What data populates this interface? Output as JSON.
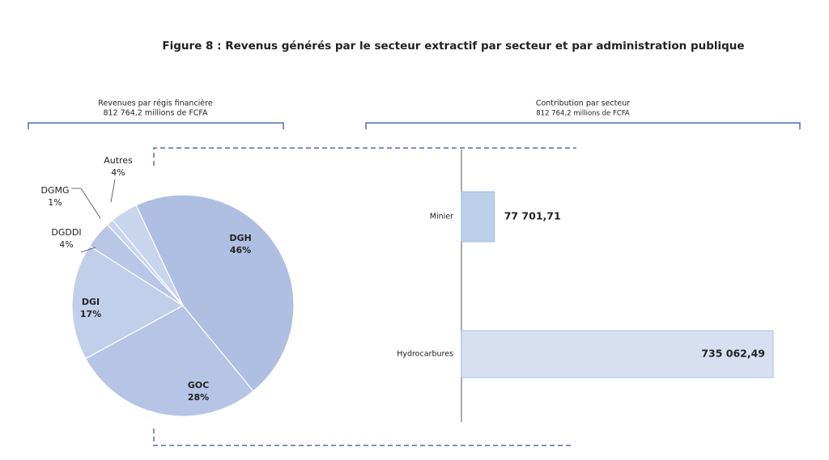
{
  "title": "Figure 8 : Revenus générés par le secteur extractif par secteur et par administration publique",
  "chart_data": [
    {
      "type": "pie",
      "title": "Revenues par régis financière",
      "subtitle": "812 764,2 millions de FCFA",
      "categories": [
        "DGH",
        "GOC",
        "DGI",
        "DGDDI",
        "DGMG",
        "Autres"
      ],
      "values": [
        46,
        28,
        17,
        4,
        1,
        4
      ],
      "value_labels": [
        "46%",
        "28%",
        "17%",
        "4%",
        "1%",
        "4%"
      ],
      "colors": [
        "#afbfe2",
        "#b6c5e6",
        "#c2cfeb",
        "#b9c7e6",
        "#c8d3ec",
        "#c9d4ed"
      ]
    },
    {
      "type": "bar",
      "title": "Contribution par secteur",
      "subtitle": "812 764,2 millions de FCFA",
      "categories": [
        "Minier",
        "Hydrocarbures"
      ],
      "values": [
        77701.71,
        735062.49
      ],
      "value_labels": [
        "77 701,71",
        "735 062,49"
      ],
      "colors": [
        "#bdd0ea",
        "#d6e0f1"
      ]
    }
  ]
}
